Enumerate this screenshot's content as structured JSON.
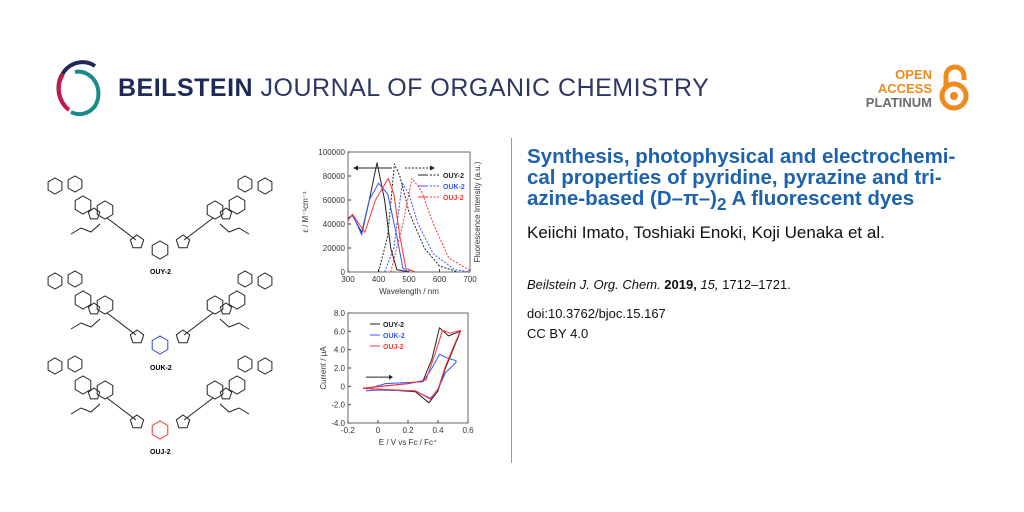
{
  "header": {
    "journal_bold": "BEILSTEIN",
    "journal_rest": " JOURNAL OF ORGANIC CHEMISTRY",
    "open_access": [
      "OPEN",
      "ACCESS",
      "PLATINUM"
    ],
    "colors": {
      "navy": "#1e2a55",
      "crimson": "#c8174a",
      "teal": "#1b8a8c",
      "orange": "#f08a1c",
      "gray": "#6b6b6b"
    }
  },
  "article": {
    "title_main": "Synthesis, photophysical and electrochemi-cal properties of pyridine, pyrazine and tri-azine-based (D–π–)",
    "title_sub": "2",
    "title_end": "A fluorescent dyes",
    "authors": "Keiichi Imato, Toshiaki Enoki, Koji Uenaka et al.",
    "citation_journal": "Beilstein J. Org. Chem.",
    "citation_year": "2019,",
    "citation_volume": "15,",
    "citation_pages": "1712–1721.",
    "doi": "doi:10.3762/bjoc.15.167",
    "license": "CC BY 4.0",
    "title_color": "#1d62ad"
  },
  "graphical_abstract": {
    "molecules": [
      "OUY-2",
      "OUK-2",
      "OUJ-2"
    ],
    "core_colors": [
      "#222222",
      "#3344dd",
      "#ee3333"
    ]
  },
  "chart_data": [
    {
      "type": "line",
      "xlabel": "Wavelength / nm",
      "ylabel": "ε / M⁻¹cm⁻¹",
      "ylabel_right": "Fluorescence Intensity (a.u.)",
      "xlim": [
        300,
        700
      ],
      "ylim": [
        0,
        100000
      ],
      "xticks": [
        "300",
        "400",
        "500",
        "600",
        "700"
      ],
      "yticks": [
        "0",
        "20000",
        "40000",
        "60000",
        "80000",
        "100000"
      ],
      "legend": "top-right",
      "series": [
        {
          "name": "OUY-2",
          "color": "#222222",
          "absorption": [
            [
              300,
              45000
            ],
            [
              315,
              47000
            ],
            [
              345,
              33000
            ],
            [
              370,
              60000
            ],
            [
              395,
              91000
            ],
            [
              420,
              60000
            ],
            [
              440,
              20000
            ],
            [
              460,
              2000
            ],
            [
              500,
              0
            ]
          ],
          "fluorescence": [
            [
              400,
              0
            ],
            [
              430,
              30000
            ],
            [
              452,
              90000
            ],
            [
              470,
              80000
            ],
            [
              500,
              50000
            ],
            [
              550,
              20000
            ],
            [
              600,
              5000
            ],
            [
              660,
              0
            ]
          ]
        },
        {
          "name": "OUK-2",
          "color": "#3355ff",
          "absorption": [
            [
              300,
              44000
            ],
            [
              315,
              48000
            ],
            [
              345,
              31000
            ],
            [
              370,
              60000
            ],
            [
              400,
              74000
            ],
            [
              430,
              65000
            ],
            [
              460,
              30000
            ],
            [
              480,
              3000
            ],
            [
              500,
              0
            ]
          ],
          "fluorescence": [
            [
              420,
              0
            ],
            [
              450,
              20000
            ],
            [
              478,
              74000
            ],
            [
              500,
              65000
            ],
            [
              530,
              40000
            ],
            [
              580,
              15000
            ],
            [
              650,
              2000
            ],
            [
              700,
              0
            ]
          ]
        },
        {
          "name": "OUJ-2",
          "color": "#ff3333",
          "absorption": [
            [
              300,
              43000
            ],
            [
              315,
              48000
            ],
            [
              355,
              33000
            ],
            [
              390,
              60000
            ],
            [
              432,
              78000
            ],
            [
              450,
              65000
            ],
            [
              470,
              30000
            ],
            [
              490,
              3000
            ],
            [
              520,
              0
            ]
          ],
          "fluorescence": [
            [
              440,
              0
            ],
            [
              480,
              40000
            ],
            [
              510,
              78000
            ],
            [
              540,
              68000
            ],
            [
              580,
              40000
            ],
            [
              630,
              12000
            ],
            [
              700,
              1000
            ]
          ]
        }
      ]
    },
    {
      "type": "line",
      "xlabel": "E / V vs Fc / Fc⁺",
      "ylabel": "Current / μA",
      "xlim": [
        -0.2,
        0.6
      ],
      "ylim": [
        -4.0,
        8.0
      ],
      "xticks": [
        "-0.2",
        "0",
        "0.2",
        "0.4",
        "0.6"
      ],
      "yticks": [
        "-4.0",
        "-2.0",
        "0",
        "2.0",
        "4.0",
        "6.0",
        "8.0"
      ],
      "legend": "top-left",
      "series": [
        {
          "name": "OUY-2",
          "color": "#222222",
          "values": [
            [
              -0.1,
              -0.2
            ],
            [
              0.2,
              0.3
            ],
            [
              0.3,
              0.6
            ],
            [
              0.36,
              3
            ],
            [
              0.41,
              6.4
            ],
            [
              0.47,
              5.5
            ],
            [
              0.55,
              6
            ],
            [
              0.5,
              4
            ],
            [
              0.45,
              2
            ],
            [
              0.4,
              -0.5
            ],
            [
              0.34,
              -1.8
            ],
            [
              0.25,
              -0.6
            ],
            [
              0,
              -0.3
            ],
            [
              -0.1,
              -0.2
            ]
          ]
        },
        {
          "name": "OUK-2",
          "color": "#3355ff",
          "values": [
            [
              -0.08,
              -0.3
            ],
            [
              0.05,
              0.3
            ],
            [
              0.3,
              0.5
            ],
            [
              0.36,
              2
            ],
            [
              0.41,
              3.5
            ],
            [
              0.46,
              3.1
            ],
            [
              0.52,
              2.8
            ],
            [
              0.52,
              2.6
            ],
            [
              0.45,
              1.5
            ],
            [
              0.4,
              -0.3
            ],
            [
              0.35,
              -1.3
            ],
            [
              0.25,
              -0.5
            ],
            [
              0,
              -0.4
            ],
            [
              -0.08,
              -0.5
            ]
          ]
        },
        {
          "name": "OUJ-2",
          "color": "#ff3333",
          "values": [
            [
              -0.1,
              -0.2
            ],
            [
              0.2,
              0.3
            ],
            [
              0.32,
              0.7
            ],
            [
              0.38,
              3.5
            ],
            [
              0.43,
              6.1
            ],
            [
              0.48,
              5.8
            ],
            [
              0.55,
              6.1
            ],
            [
              0.5,
              4.2
            ],
            [
              0.45,
              2.2
            ],
            [
              0.4,
              -0.3
            ],
            [
              0.35,
              -1.4
            ],
            [
              0.25,
              -0.5
            ],
            [
              0,
              -0.3
            ],
            [
              -0.1,
              -0.2
            ]
          ]
        }
      ]
    }
  ]
}
